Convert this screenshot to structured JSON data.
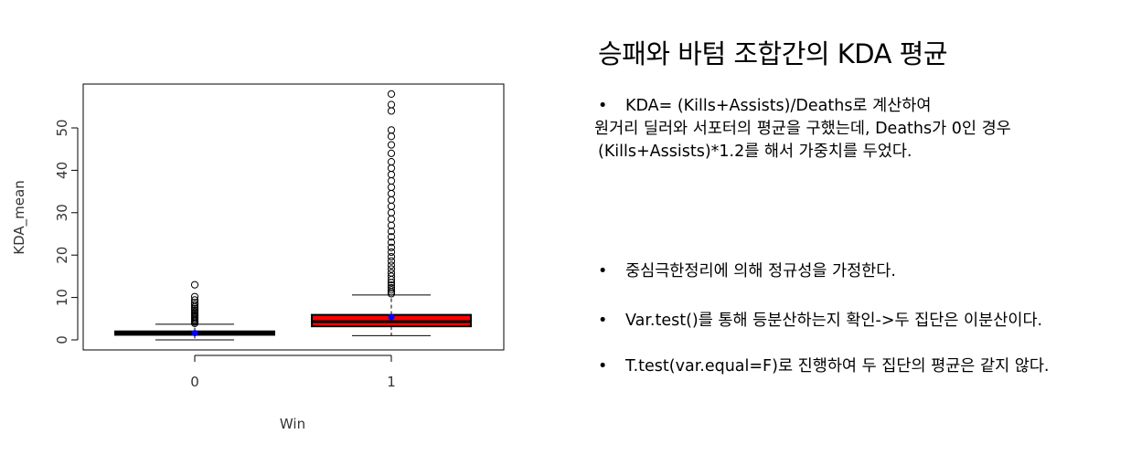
{
  "panel": {
    "title": "승패와 바텀 조합간의 KDA 평균",
    "bullets": [
      "KDA= (Kills+Assists)/Deaths로  계산하여",
      "중심극한정리에 의해 정규성을 가정한다.",
      "Var.test()를 통해 등분산하는지 확인->두 집단은 이분산이다.",
      "T.test(var.equal=F)로  진행하여 두 집단의 평균은 같지 않다."
    ],
    "continuation": [
      "원거리 딜러와 서포터의 평균을 구했는데, Deaths가 0인 경우",
      "(Kills+Assists)*1.2를  해서 가중치를 두었다."
    ],
    "bullet_symbol": "•"
  },
  "chart_data": {
    "type": "boxplot",
    "xlabel": "Win",
    "ylabel": "KDA_mean",
    "categories": [
      "0",
      "1"
    ],
    "yticks": [
      0,
      10,
      20,
      30,
      40,
      50
    ],
    "ylim": [
      -2.5,
      60
    ],
    "series": [
      {
        "category": "0",
        "fill": "#000000",
        "whisker_low": 0,
        "q1": 1.2,
        "median": 1.6,
        "q3": 2.0,
        "whisker_high": 3.7,
        "mean": 1.6,
        "outliers": [
          3.9,
          4.2,
          4.5,
          4.8,
          5.1,
          5.4,
          5.7,
          6.0,
          6.3,
          6.6,
          7.0,
          7.4,
          7.8,
          8.3,
          8.8,
          9.4,
          10.2,
          13.0
        ]
      },
      {
        "category": "1",
        "fill": "#ff0000",
        "whisker_low": 1.0,
        "q1": 3.2,
        "median": 4.3,
        "q3": 5.9,
        "whisker_high": 10.6,
        "mean": 5.4,
        "outliers": [
          10.9,
          11.3,
          11.8,
          12.3,
          12.9,
          13.5,
          14.2,
          15.0,
          15.8,
          16.7,
          17.6,
          18.6,
          19.6,
          20.7,
          21.8,
          23.0,
          24.3,
          25.6,
          27.0,
          28.5,
          30.0,
          31.5,
          33.0,
          34.5,
          36.0,
          37.5,
          39.0,
          40.5,
          42.0,
          44.0,
          46.0,
          48.0,
          49.5,
          54.0,
          55.5,
          58.0
        ]
      }
    ],
    "mean_marker_color": "#0000ff"
  }
}
